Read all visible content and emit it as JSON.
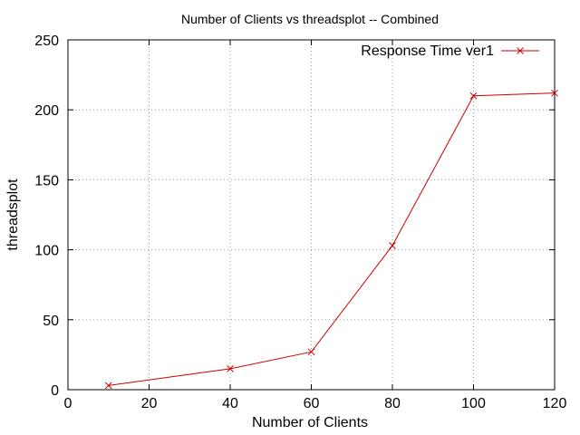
{
  "chart_data": {
    "type": "line",
    "title": "Number of Clients vs threadsplot -- Combined",
    "xlabel": "Number of Clients",
    "ylabel": "threadsplot",
    "xlim": [
      0,
      120
    ],
    "ylim": [
      0,
      250
    ],
    "x_ticks": [
      "0",
      "20",
      "40",
      "60",
      "80",
      "100",
      "120"
    ],
    "y_ticks": [
      "0",
      "50",
      "100",
      "150",
      "200",
      "250"
    ],
    "grid": true,
    "legend_position": "top-right",
    "series": [
      {
        "name": "Response Time ver1",
        "color": "#cc0000",
        "marker": "x",
        "x": [
          10,
          40,
          60,
          80,
          100,
          120
        ],
        "y": [
          3,
          15,
          27,
          103,
          210,
          212
        ]
      }
    ]
  }
}
